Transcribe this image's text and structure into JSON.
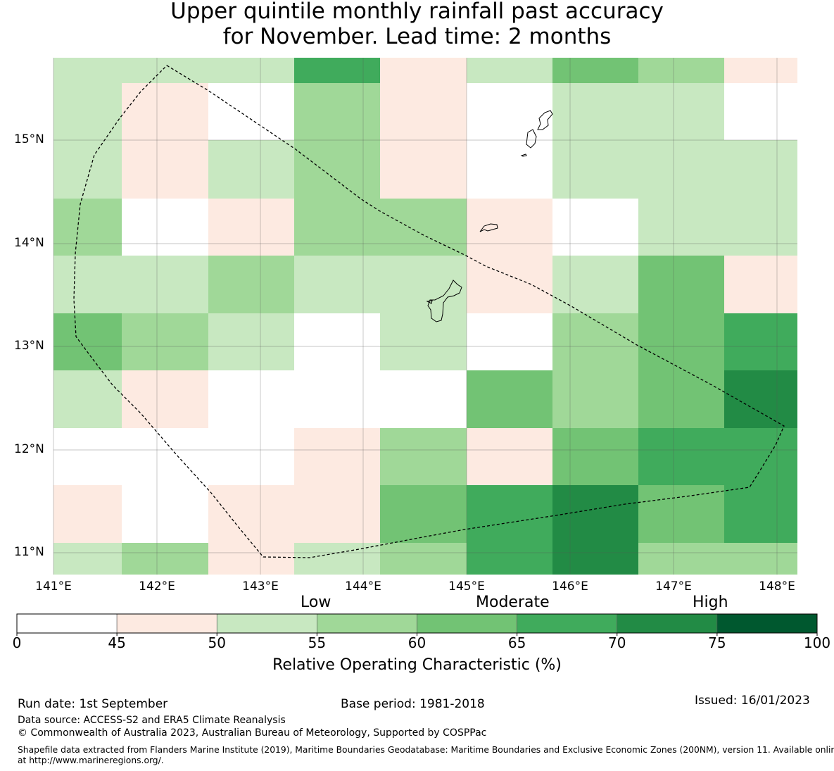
{
  "title": {
    "line1": "Upper quintile monthly rainfall past accuracy",
    "line2": "for November. Lead time: 2 months"
  },
  "map": {
    "lon_labels": [
      "141°E",
      "142°E",
      "143°E",
      "144°E",
      "145°E",
      "146°E",
      "147°E",
      "148°E"
    ],
    "lat_labels": [
      "15°N",
      "14°N",
      "13°N",
      "12°N",
      "11°N"
    ],
    "grid_rows": [
      [
        2,
        2,
        2,
        5,
        1,
        2,
        4,
        3,
        1
      ],
      [
        2,
        1,
        0,
        3,
        1,
        0,
        2,
        2,
        0
      ],
      [
        2,
        1,
        2,
        3,
        1,
        0,
        2,
        2,
        2
      ],
      [
        3,
        0,
        1,
        3,
        3,
        1,
        0,
        2,
        2
      ],
      [
        2,
        2,
        3,
        2,
        2,
        1,
        2,
        4,
        1
      ],
      [
        4,
        3,
        2,
        0,
        2,
        0,
        3,
        4,
        5
      ],
      [
        2,
        1,
        0,
        0,
        0,
        4,
        3,
        4,
        6
      ],
      [
        0,
        0,
        0,
        1,
        3,
        1,
        4,
        5,
        5
      ],
      [
        1,
        0,
        1,
        1,
        4,
        5,
        6,
        4,
        5
      ],
      [
        2,
        3,
        1,
        2,
        3,
        5,
        6,
        3,
        3
      ]
    ]
  },
  "legend": {
    "categories": [
      "Low",
      "Moderate",
      "High"
    ],
    "ticks": [
      "0",
      "45",
      "50",
      "55",
      "60",
      "65",
      "70",
      "75",
      "100"
    ],
    "colors": [
      "#ffffff",
      "#fdeae1",
      "#c8e8c1",
      "#a0d898",
      "#72c374",
      "#40ab5c",
      "#228b45",
      "#00582f"
    ],
    "axis_title": "Relative Operating Characteristic (%)"
  },
  "footer": {
    "run_date": "Run date: 1st September",
    "base_period": "Base period: 1981-2018",
    "issued": "Issued: 16/01/2023",
    "data_source": "Data source: ACCESS-S2 and ERA5 Climate Reanalysis",
    "copyright": "© Commonwealth of Australia 2023, Australian Bureau of Meteorology, Supported by COSPPac",
    "shapefile_line1": "Shapefile data extracted from Flanders Marine Institute (2019), Maritime Boundaries Geodatabase: Maritime Boundaries and Exclusive Economic Zones (200NM), version 11. Available online",
    "shapefile_line2": "at http://www.marineregions.org/."
  }
}
